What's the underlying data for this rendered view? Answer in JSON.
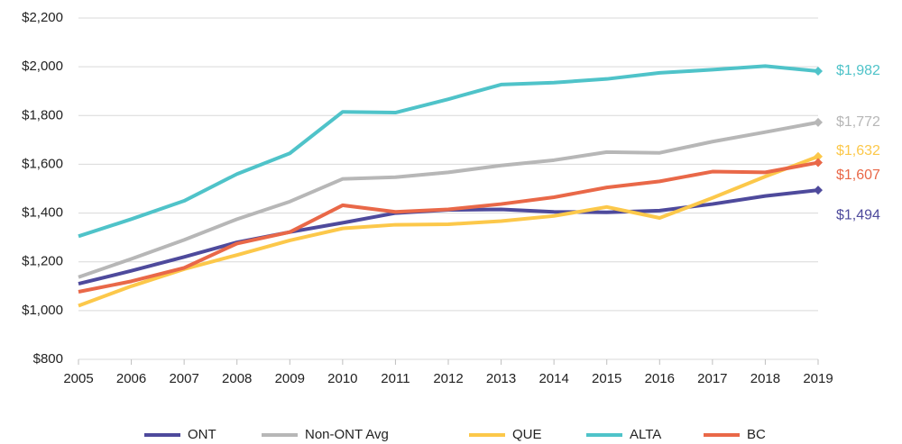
{
  "chart_data": {
    "type": "line",
    "x": [
      2005,
      2006,
      2007,
      2008,
      2009,
      2010,
      2011,
      2012,
      2013,
      2014,
      2015,
      2016,
      2017,
      2018,
      2019
    ],
    "xlim": [
      2005,
      2019
    ],
    "xticks": [
      2005,
      2006,
      2007,
      2008,
      2009,
      2010,
      2011,
      2012,
      2013,
      2014,
      2015,
      2016,
      2017,
      2018,
      2019
    ],
    "ylim": [
      800,
      2200
    ],
    "yticks": [
      {
        "value": 800,
        "label": "$800"
      },
      {
        "value": 1000,
        "label": "$1,000"
      },
      {
        "value": 1200,
        "label": "$1,200"
      },
      {
        "value": 1400,
        "label": "$1,400"
      },
      {
        "value": 1600,
        "label": "$1,600"
      },
      {
        "value": 1800,
        "label": "$1,800"
      },
      {
        "value": 2000,
        "label": "$2,000"
      },
      {
        "value": 2200,
        "label": "$2,200"
      }
    ],
    "grid": true,
    "legend": "bottom",
    "series": [
      {
        "name": "ONT",
        "color": "#4e4a9c",
        "values": [
          1110,
          1163,
          1220,
          1280,
          1322,
          1360,
          1400,
          1413,
          1415,
          1405,
          1403,
          1410,
          1437,
          1470,
          1494
        ],
        "value_labels": [
          null,
          null,
          null,
          null,
          null,
          null,
          null,
          null,
          null,
          null,
          null,
          null,
          null,
          null,
          "$1,494"
        ]
      },
      {
        "name": "Non-ONT Avg",
        "color": "#b7b7b7",
        "values": [
          1137,
          1212,
          1290,
          1375,
          1447,
          1540,
          1547,
          1567,
          1595,
          1617,
          1650,
          1647,
          1693,
          1732,
          1772
        ],
        "value_labels": [
          null,
          null,
          null,
          null,
          null,
          null,
          null,
          null,
          null,
          null,
          null,
          null,
          null,
          null,
          "$1,772"
        ]
      },
      {
        "name": "QUE",
        "color": "#fcc84a",
        "values": [
          1020,
          1100,
          1170,
          1228,
          1288,
          1337,
          1352,
          1354,
          1367,
          1388,
          1425,
          1380,
          1462,
          1550,
          1632
        ],
        "value_labels": [
          null,
          null,
          null,
          null,
          null,
          null,
          null,
          null,
          null,
          null,
          null,
          null,
          null,
          null,
          "$1,632"
        ]
      },
      {
        "name": "ALTA",
        "color": "#4fc3c9",
        "values": [
          1305,
          1375,
          1450,
          1560,
          1645,
          1815,
          1812,
          1867,
          1927,
          1935,
          1950,
          1975,
          1988,
          2003,
          1982
        ],
        "value_labels": [
          null,
          null,
          null,
          null,
          null,
          null,
          null,
          null,
          null,
          null,
          null,
          null,
          null,
          null,
          "$1,982"
        ]
      },
      {
        "name": "BC",
        "color": "#e96848",
        "values": [
          1077,
          1120,
          1175,
          1275,
          1322,
          1432,
          1405,
          1415,
          1437,
          1465,
          1505,
          1530,
          1570,
          1567,
          1607
        ],
        "value_labels": [
          null,
          null,
          null,
          null,
          null,
          null,
          null,
          null,
          null,
          null,
          null,
          null,
          null,
          null,
          "$1,607"
        ]
      }
    ]
  }
}
